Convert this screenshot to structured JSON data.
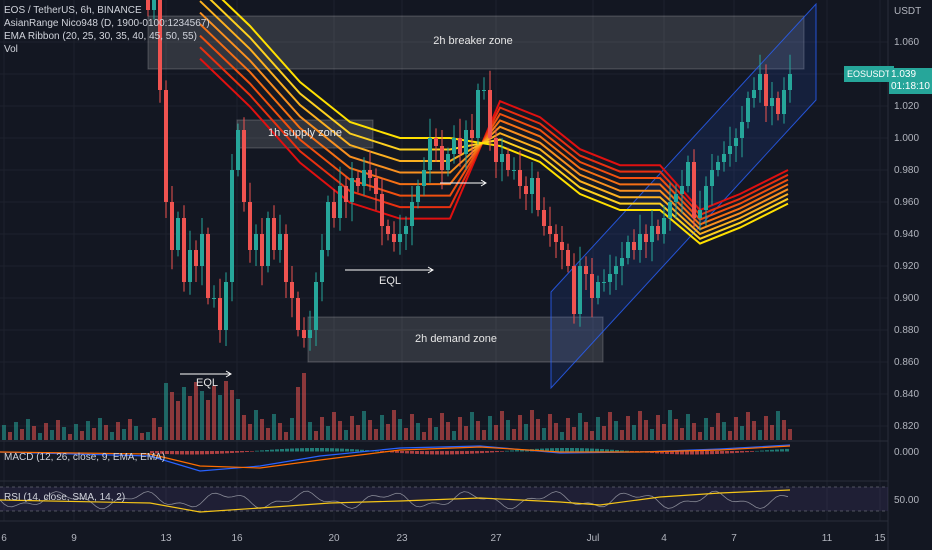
{
  "legend": {
    "symbol": "EOS / TetherUS, 6h, BINANCE",
    "ind1": "AsianRange Nico948 (D, 1900-0100:1234567)",
    "ind2": "EMA Ribbon (20, 25, 30, 35, 40, 45, 50, 55)",
    "ind3": "Vol"
  },
  "axis": {
    "currency": "USDT",
    "prices": [
      "1.060",
      "1.040",
      "1.020",
      "1.000",
      "0.980",
      "0.960",
      "0.940",
      "0.920",
      "0.900",
      "0.880",
      "0.860",
      "0.840",
      "0.820"
    ],
    "macd_zero": "0.000",
    "rsi_mid": "50.00",
    "dates": [
      "6",
      "9",
      "13",
      "16",
      "20",
      "23",
      "27",
      "Jul",
      "4",
      "7",
      "11",
      "15"
    ]
  },
  "last_price": {
    "symbol": "EOSUSDT",
    "price": "1.039",
    "countdown": "01:18:10"
  },
  "zones": {
    "breaker": "2h breaker zone",
    "supply": "1h supply zone",
    "demand": "2h demand zone"
  },
  "eql_labels": [
    "EQL",
    "EQL"
  ],
  "macd_label": "MACD (12, 26, close, 9, EMA, EMA)",
  "rsi_label": "RSI (14, close, SMA, 14, 2)",
  "colors": {
    "up": "#26a69a",
    "down": "#ef5350",
    "channel": "#2962ff",
    "ribbon_outer": "#e01010",
    "ribbon_inner": "#ffe000"
  }
}
